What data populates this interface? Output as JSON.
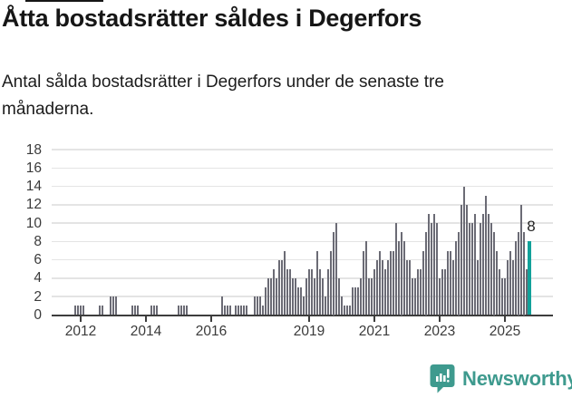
{
  "page": {
    "title": "Åtta bostadsrätter såldes i Degerfors",
    "subtitle": "Antal sålda bostadsrätter i Degerfors under de senaste tre månaderna."
  },
  "branding": {
    "name": "Newsworthy",
    "icon": "newsworthy-speech-bubble-barchart-icon",
    "color": "#3e9a8e"
  },
  "chart_data": {
    "type": "bar",
    "description": "Monthly bars of condominium sales (rolling three months), early 2011 through latest period",
    "bar_interval": "monthly",
    "values": [
      0,
      0,
      0,
      0,
      0,
      0,
      0,
      0,
      1,
      1,
      1,
      1,
      0,
      0,
      0,
      0,
      0,
      1,
      1,
      0,
      0,
      2,
      2,
      2,
      0,
      0,
      0,
      0,
      0,
      1,
      1,
      1,
      0,
      0,
      0,
      0,
      1,
      1,
      1,
      0,
      0,
      0,
      0,
      0,
      0,
      0,
      1,
      1,
      1,
      1,
      0,
      0,
      0,
      0,
      0,
      0,
      0,
      0,
      0,
      0,
      0,
      0,
      2,
      1,
      1,
      1,
      0,
      1,
      1,
      1,
      1,
      1,
      0,
      0,
      2,
      2,
      2,
      1,
      3,
      4,
      4,
      5,
      4,
      6,
      6,
      7,
      5,
      5,
      4,
      4,
      3,
      3,
      2,
      4,
      5,
      5,
      4,
      7,
      5,
      4,
      2,
      5,
      7,
      9,
      10,
      4,
      2,
      1,
      1,
      1,
      3,
      3,
      3,
      4,
      7,
      8,
      4,
      4,
      5,
      6,
      7,
      6,
      5,
      6,
      7,
      7,
      10,
      8,
      9,
      8,
      6,
      6,
      4,
      4,
      5,
      5,
      7,
      9,
      11,
      10,
      11,
      10,
      4,
      5,
      5,
      7,
      7,
      6,
      8,
      9,
      12,
      14,
      12,
      10,
      10,
      11,
      6,
      10,
      11,
      13,
      11,
      10,
      9,
      7,
      5,
      4,
      4,
      6,
      7,
      6,
      8,
      9,
      12,
      9,
      5,
      8
    ],
    "highlight": {
      "last_bar_value": 8,
      "annotation_label": "8",
      "color": "#12a19a"
    },
    "bar_color": "#6b6b75",
    "ylim": [
      0,
      18
    ],
    "y_ticks": [
      0,
      2,
      4,
      6,
      8,
      10,
      12,
      14,
      16,
      18
    ],
    "x_ticks": [
      {
        "label": "2012",
        "index": 10
      },
      {
        "label": "2014",
        "index": 34
      },
      {
        "label": "2016",
        "index": 58
      },
      {
        "label": "2019",
        "index": 94
      },
      {
        "label": "2021",
        "index": 118
      },
      {
        "label": "2023",
        "index": 142
      },
      {
        "label": "2025",
        "index": 166
      }
    ],
    "grid": "horizontal",
    "legend": "none"
  }
}
